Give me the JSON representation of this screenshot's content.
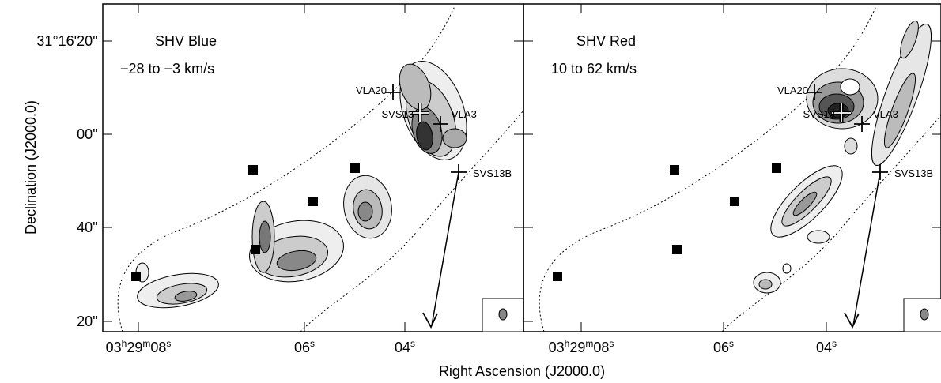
{
  "panels": [
    {
      "title": "SHV Blue",
      "velocity": "−28 to −3 km/s",
      "sources": [
        "VLA20",
        "SVS13",
        "VLA3",
        "SVS13B"
      ]
    },
    {
      "title": "SHV Red",
      "velocity": "10 to 62 km/s",
      "sources": [
        "VLA20",
        "SVS13",
        "VLA3",
        "SVS13B"
      ]
    }
  ],
  "y_axis": {
    "label": "Declination (J2000.0)",
    "ticks": [
      "31°16'20''",
      "00''",
      "40''",
      "20''"
    ]
  },
  "x_axis": {
    "label": "Right Ascension (J2000.0)",
    "ticks": [
      [
        "03",
        "h",
        "29",
        "m",
        "08",
        "s"
      ],
      [
        "06",
        "s"
      ],
      [
        "04",
        "s"
      ]
    ]
  }
}
